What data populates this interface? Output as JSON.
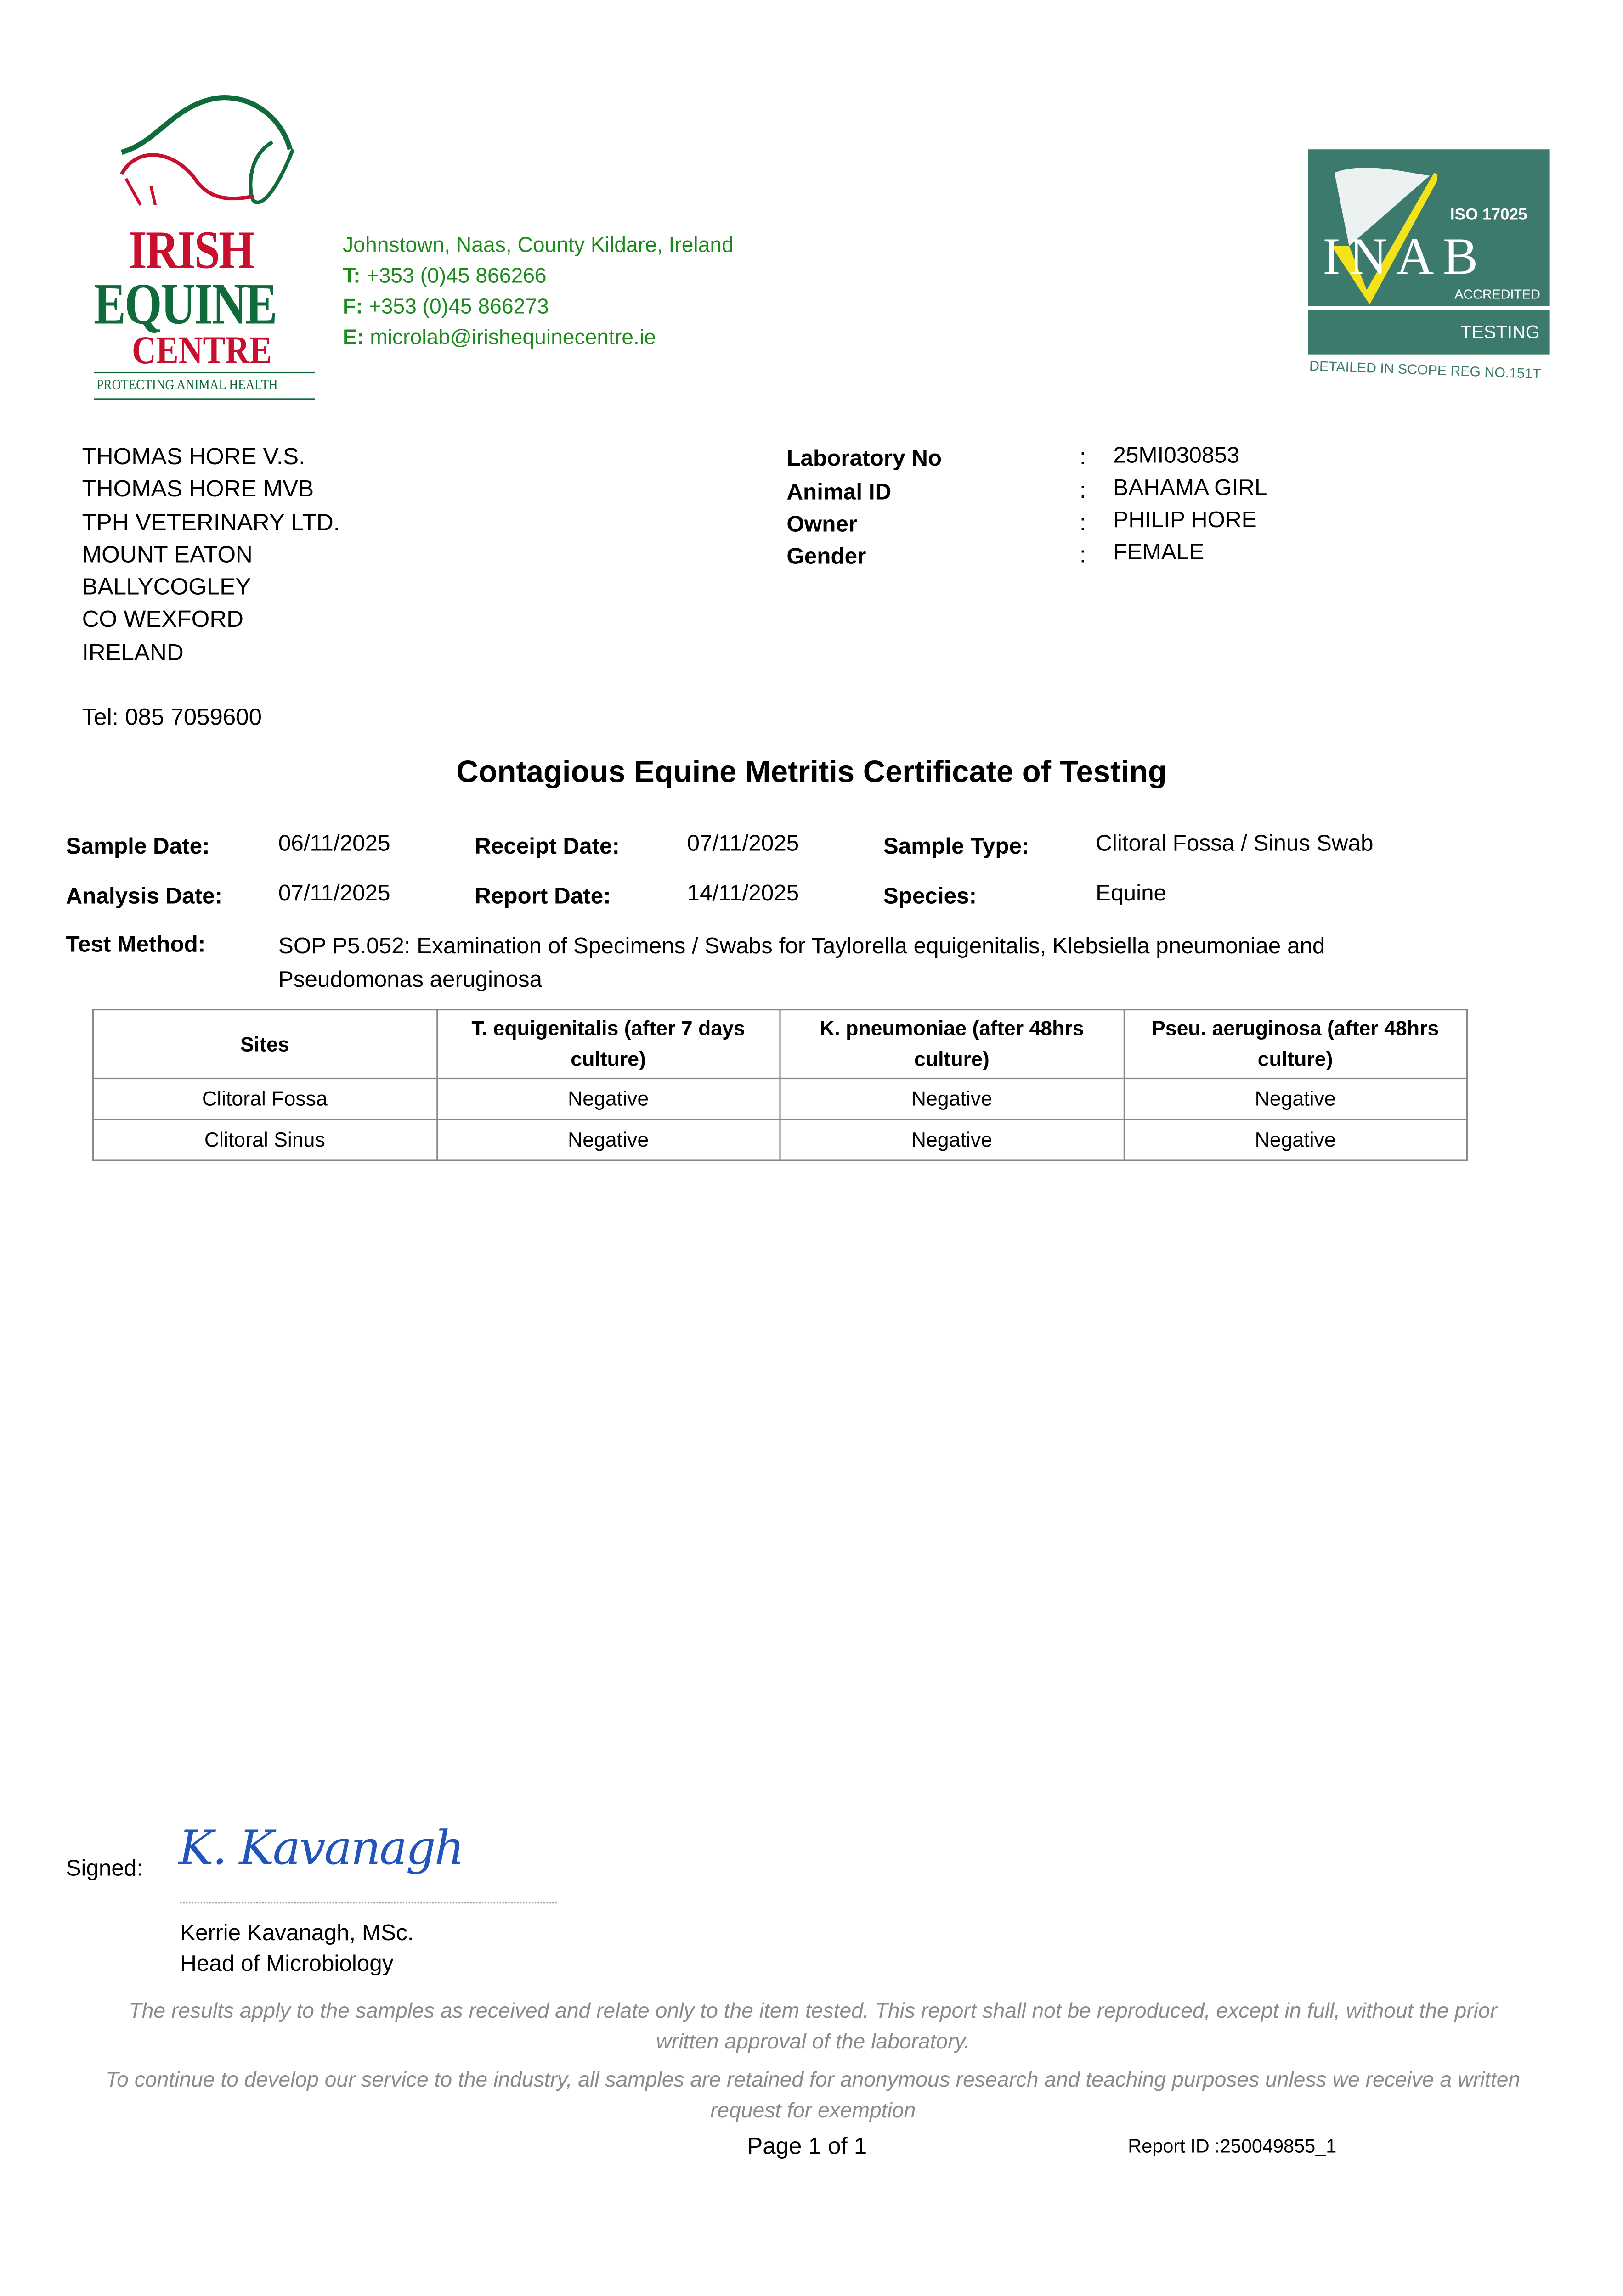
{
  "logo": {
    "line1": "IRISH",
    "line2": "EQUINE",
    "line3": "CENTRE",
    "tagline": "PROTECTING ANIMAL HEALTH",
    "red": "#c8102e",
    "green": "#0f6b3a"
  },
  "contact": {
    "address": "Johnstown, Naas, County Kildare, Ireland",
    "phone_label": "T:",
    "phone": "+353 (0)45 866266",
    "fax_label": "F:",
    "fax": "+353 (0)45 866273",
    "email_label": "E:",
    "email": "microlab@irishequinecentre.ie",
    "color": "#1a8a1a"
  },
  "inab": {
    "iso": "ISO 17025",
    "name": "INAB",
    "accredited": "ACCREDITED",
    "testing": "TESTING",
    "scope": "DETAILED IN SCOPE REG NO.151T",
    "color": "#3d7a6e",
    "check": "#f5e31a"
  },
  "recipient": {
    "lines": [
      "THOMAS HORE V.S.",
      "THOMAS HORE MVB",
      "TPH VETERINARY LTD.",
      "MOUNT EATON",
      "BALLYCOGLEY",
      "CO WEXFORD",
      "IRELAND"
    ],
    "tel": "Tel: 085 7059600"
  },
  "info": [
    {
      "label": "Laboratory No",
      "value": "25MI030853"
    },
    {
      "label": "Animal ID",
      "value": "BAHAMA GIRL"
    },
    {
      "label": "Owner",
      "value": "PHILIP HORE"
    },
    {
      "label": "Gender",
      "value": "FEMALE"
    }
  ],
  "colon": ":",
  "title": "Contagious Equine Metritis Certificate of Testing",
  "details": {
    "sample_date_label": "Sample Date:",
    "sample_date": "06/11/2025",
    "receipt_date_label": "Receipt Date:",
    "receipt_date": "07/11/2025",
    "sample_type_label": "Sample Type:",
    "sample_type": "Clitoral Fossa / Sinus Swab",
    "analysis_date_label": "Analysis Date:",
    "analysis_date": "07/11/2025",
    "report_date_label": "Report Date:",
    "report_date": "14/11/2025",
    "species_label": "Species:",
    "species": "Equine",
    "test_method_label": "Test Method:",
    "test_method": "SOP P5.052: Examination of Specimens / Swabs for Taylorella equigenitalis, Klebsiella pneumoniae and Pseudomonas aeruginosa"
  },
  "table": {
    "headers": [
      "Sites",
      "T. equigenitalis (after 7 days culture)",
      "K. pneumoniae (after 48hrs culture)",
      "Pseu. aeruginosa (after 48hrs culture)"
    ],
    "rows": [
      [
        "Clitoral Fossa",
        "Negative",
        "Negative",
        "Negative"
      ],
      [
        "Clitoral Sinus",
        "Negative",
        "Negative",
        "Negative"
      ]
    ]
  },
  "signature": {
    "label": "Signed:",
    "handwriting": "K. Kavanagh",
    "name": "Kerrie Kavanagh, MSc.",
    "role": "Head of Microbiology"
  },
  "disclaimers": [
    "The results apply to the samples as received and relate only to the item tested. This report shall not be reproduced, except in full, without the prior written approval of the laboratory.",
    "To continue to develop our service to the industry, all samples are retained for anonymous research and teaching purposes unless we receive a written request for exemption"
  ],
  "footer": {
    "page": "Page 1 of 1",
    "report_id": "Report ID :250049855_1"
  }
}
